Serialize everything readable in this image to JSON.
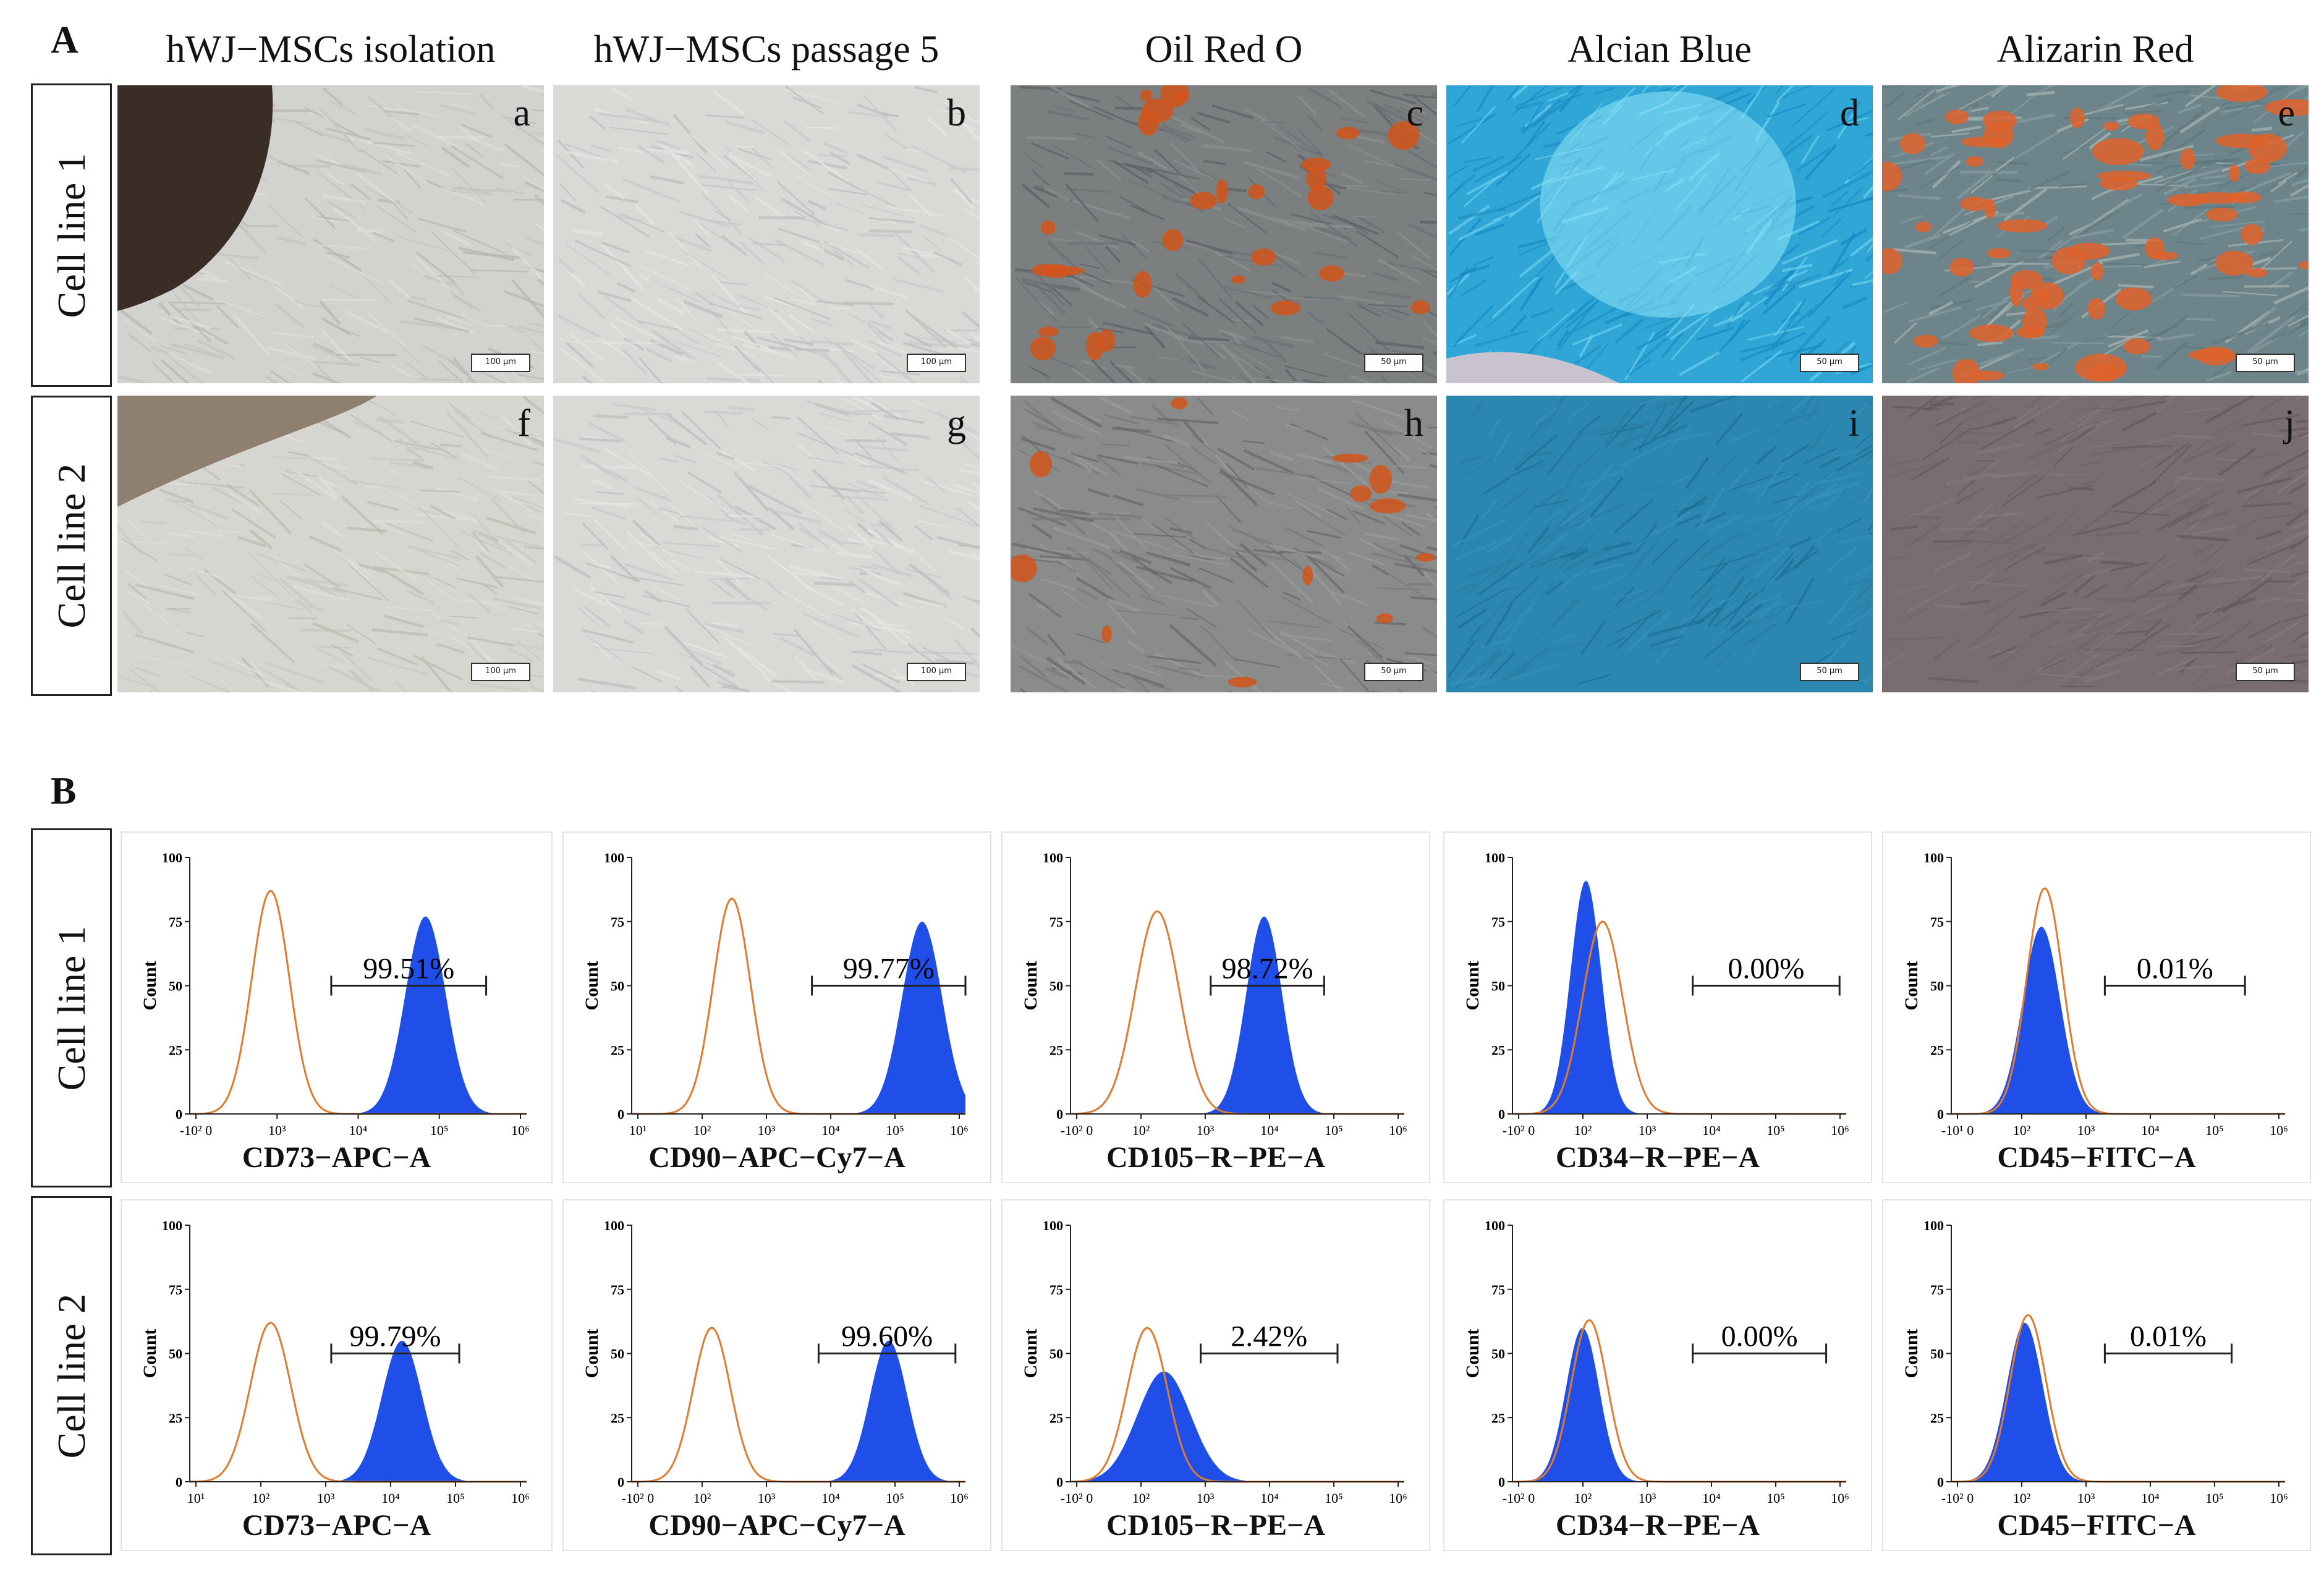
{
  "figure": {
    "panel_A": "A",
    "panel_B": "B",
    "column_titles": [
      "hWJ−MSCs isolation",
      "hWJ−MSCs passage 5",
      "Oil Red O",
      "Alcian Blue",
      "Alizarin Red"
    ],
    "row_labels": [
      "Cell line 1",
      "Cell line 2"
    ],
    "images": [
      {
        "letter": "a",
        "scale": "100 µm",
        "style": "phase-isolation"
      },
      {
        "letter": "b",
        "scale": "100 µm",
        "style": "phase"
      },
      {
        "letter": "c",
        "scale": "50 µm",
        "style": "oilred"
      },
      {
        "letter": "d",
        "scale": "50 µm",
        "style": "alcian-bright"
      },
      {
        "letter": "e",
        "scale": "50 µm",
        "style": "alizarin"
      },
      {
        "letter": "f",
        "scale": "100 µm",
        "style": "phase-isolation2"
      },
      {
        "letter": "g",
        "scale": "100 µm",
        "style": "phase"
      },
      {
        "letter": "h",
        "scale": "50 µm",
        "style": "oilred2"
      },
      {
        "letter": "i",
        "scale": "50 µm",
        "style": "alcian-dark"
      },
      {
        "letter": "j",
        "scale": "50 µm",
        "style": "alizarin-neg"
      }
    ],
    "colors": {
      "stained": "#1f4fe8",
      "control": "#e07a2e",
      "axis": "#222222"
    }
  },
  "chart_data": [
    {
      "type": "histogram",
      "row": "Cell line 1",
      "xlabel": "CD73−APC−A",
      "ylabel": "Count",
      "yticks": [
        "0",
        "25",
        "50",
        "75",
        "100"
      ],
      "xticks": [
        "-10² 0",
        "10³",
        "10⁴",
        "10⁵",
        "10⁶"
      ],
      "gate_label": "99.51%",
      "gate": [
        3.1,
        5.4
      ],
      "control_peak": {
        "center": 2.2,
        "width": 0.28,
        "height": 87
      },
      "stained_peak": {
        "center": 4.5,
        "width": 0.3,
        "height": 77
      }
    },
    {
      "type": "histogram",
      "row": "Cell line 1",
      "xlabel": "CD90−APC−Cy7−A",
      "ylabel": "Count",
      "yticks": [
        "0",
        "25",
        "50",
        "75",
        "100"
      ],
      "xticks": [
        "10¹",
        "10²",
        "10³",
        "10⁴",
        "10⁵",
        "10⁶"
      ],
      "gate_label": "99.77%",
      "gate": [
        3.7,
        6.0
      ],
      "control_peak": {
        "center": 2.5,
        "width": 0.28,
        "height": 84
      },
      "stained_peak": {
        "center": 5.35,
        "width": 0.3,
        "height": 75
      }
    },
    {
      "type": "histogram",
      "row": "Cell line 1",
      "xlabel": "CD105−R−PE−A",
      "ylabel": "Count",
      "yticks": [
        "0",
        "25",
        "50",
        "75",
        "100"
      ],
      "xticks": [
        "-10² 0",
        "10²",
        "10³",
        "10⁴",
        "10⁵",
        "10⁶"
      ],
      "gate_label": "98.72%",
      "gate": [
        3.1,
        4.8
      ],
      "control_peak": {
        "center": 2.3,
        "width": 0.33,
        "height": 79
      },
      "stained_peak": {
        "center": 3.9,
        "width": 0.27,
        "height": 77
      }
    },
    {
      "type": "histogram",
      "row": "Cell line 1",
      "xlabel": "CD34−R−PE−A",
      "ylabel": "Count",
      "yticks": [
        "0",
        "25",
        "50",
        "75",
        "100"
      ],
      "xticks": [
        "-10² 0",
        "10²",
        "10³",
        "10⁴",
        "10⁵",
        "10⁶"
      ],
      "gate_label": "0.00%",
      "gate": [
        3.7,
        5.9
      ],
      "control_peak": {
        "center": 2.35,
        "width": 0.3,
        "height": 75
      },
      "stained_peak": {
        "center": 2.1,
        "width": 0.23,
        "height": 91
      }
    },
    {
      "type": "histogram",
      "row": "Cell line 1",
      "xlabel": "CD45−FITC−A",
      "ylabel": "Count",
      "yticks": [
        "0",
        "25",
        "50",
        "75",
        "100"
      ],
      "xticks": [
        "-10¹ 0",
        "10²",
        "10³",
        "10⁴",
        "10⁵",
        "10⁶"
      ],
      "gate_label": "0.01%",
      "gate": [
        3.3,
        5.4
      ],
      "control_peak": {
        "center": 2.4,
        "width": 0.27,
        "height": 88
      },
      "stained_peak": {
        "center": 2.35,
        "width": 0.28,
        "height": 73
      }
    },
    {
      "type": "histogram",
      "row": "Cell line 2",
      "xlabel": "CD73−APC−A",
      "ylabel": "Count",
      "yticks": [
        "0",
        "25",
        "50",
        "75",
        "100"
      ],
      "xticks": [
        "10¹",
        "10²",
        "10³",
        "10⁴",
        "10⁵",
        "10⁶"
      ],
      "gate_label": "99.79%",
      "gate": [
        3.1,
        5.0
      ],
      "control_peak": {
        "center": 2.2,
        "width": 0.3,
        "height": 62
      },
      "stained_peak": {
        "center": 4.15,
        "width": 0.3,
        "height": 55
      }
    },
    {
      "type": "histogram",
      "row": "Cell line 2",
      "xlabel": "CD90−APC−Cy7−A",
      "ylabel": "Count",
      "yticks": [
        "0",
        "25",
        "50",
        "75",
        "100"
      ],
      "xticks": [
        "-10² 0",
        "10²",
        "10³",
        "10⁴",
        "10⁵",
        "10⁶"
      ],
      "gate_label": "99.60%",
      "gate": [
        3.8,
        5.85
      ],
      "control_peak": {
        "center": 2.2,
        "width": 0.28,
        "height": 60
      },
      "stained_peak": {
        "center": 4.85,
        "width": 0.28,
        "height": 55
      }
    },
    {
      "type": "histogram",
      "row": "Cell line 2",
      "xlabel": "CD105−R−PE−A",
      "ylabel": "Count",
      "yticks": [
        "0",
        "25",
        "50",
        "75",
        "100"
      ],
      "xticks": [
        "-10² 0",
        "10²",
        "10³",
        "10⁴",
        "10⁵",
        "10⁶"
      ],
      "gate_label": "2.42%",
      "gate": [
        2.95,
        5.0
      ],
      "control_peak": {
        "center": 2.15,
        "width": 0.3,
        "height": 60
      },
      "stained_peak": {
        "center": 2.4,
        "width": 0.4,
        "height": 43
      }
    },
    {
      "type": "histogram",
      "row": "Cell line 2",
      "xlabel": "CD34−R−PE−A",
      "ylabel": "Count",
      "yticks": [
        "0",
        "25",
        "50",
        "75",
        "100"
      ],
      "xticks": [
        "-10² 0",
        "10²",
        "10³",
        "10⁴",
        "10⁵",
        "10⁶"
      ],
      "gate_label": "0.00%",
      "gate": [
        3.7,
        5.7
      ],
      "control_peak": {
        "center": 2.15,
        "width": 0.27,
        "height": 63
      },
      "stained_peak": {
        "center": 2.05,
        "width": 0.25,
        "height": 60
      }
    },
    {
      "type": "histogram",
      "row": "Cell line 2",
      "xlabel": "CD45−FITC−A",
      "ylabel": "Count",
      "yticks": [
        "0",
        "25",
        "50",
        "75",
        "100"
      ],
      "xticks": [
        "-10² 0",
        "10²",
        "10³",
        "10⁴",
        "10⁵",
        "10⁶"
      ],
      "gate_label": "0.01%",
      "gate": [
        3.3,
        5.2
      ],
      "control_peak": {
        "center": 2.15,
        "width": 0.27,
        "height": 65
      },
      "stained_peak": {
        "center": 2.1,
        "width": 0.27,
        "height": 62
      }
    }
  ]
}
